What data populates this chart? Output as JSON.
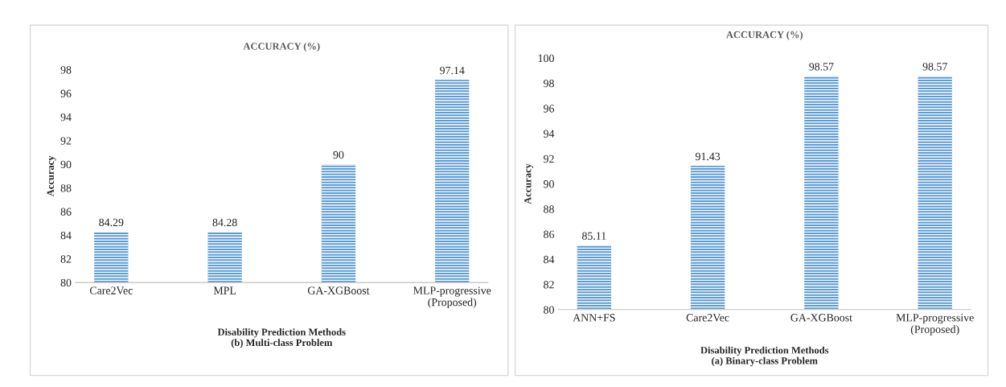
{
  "chart_data": [
    {
      "type": "bar",
      "title": "ACCURACY (%)",
      "xlabel": "Disability Prediction Methods\n(b) Multi-class Problem",
      "ylabel": "Accuracy",
      "categories": [
        "Care2Vec",
        "MPL",
        "GA-XGBoost",
        "MLP-progressive\n(Proposed)"
      ],
      "values": [
        84.29,
        84.28,
        90,
        97.14
      ],
      "color": "#5b9bd5",
      "ylim": [
        80,
        98
      ],
      "yticks": [
        80,
        82,
        84,
        86,
        88,
        90,
        92,
        94,
        96,
        98
      ],
      "grid": false,
      "data_labels": true,
      "value_labels": [
        "84.29",
        "84.28",
        "90",
        "97.14"
      ]
    },
    {
      "type": "bar",
      "title": "ACCURACY (%)",
      "xlabel": "Disability Prediction Methods\n(a) Binary-class Problem",
      "ylabel": "Accuracy",
      "categories": [
        "ANN+FS",
        "Care2Vec",
        "GA-XGBoost",
        "MLP-progressive\n(Proposed)"
      ],
      "values": [
        85.11,
        91.43,
        98.57,
        98.57
      ],
      "color": "#5b9bd5",
      "ylim": [
        80,
        100
      ],
      "yticks": [
        80,
        82,
        84,
        86,
        88,
        90,
        92,
        94,
        96,
        98,
        100
      ],
      "grid": false,
      "data_labels": true,
      "value_labels": [
        "85.11",
        "91.43",
        "98.57",
        "98.57"
      ]
    }
  ]
}
